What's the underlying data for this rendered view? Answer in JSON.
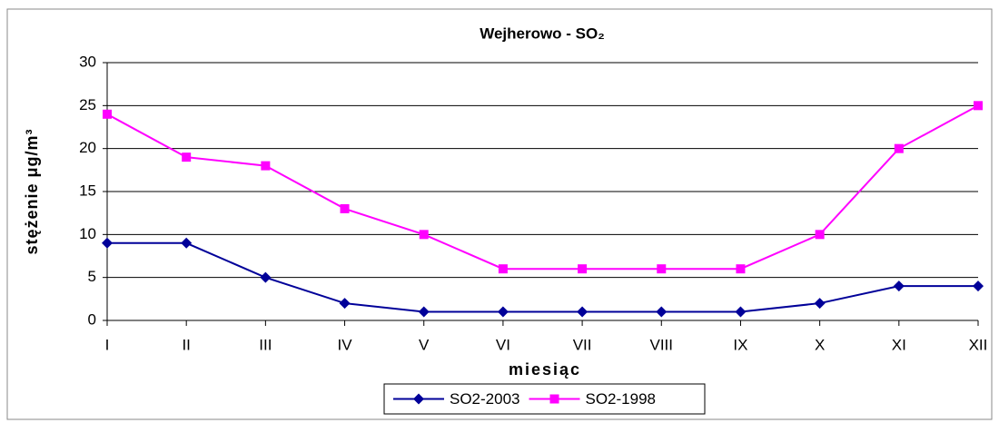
{
  "chart_data": {
    "type": "line",
    "title": "Wejherowo - SO₂",
    "x_label": "miesiąc",
    "y_label": "stężenie μg/m³",
    "categories": [
      "I",
      "II",
      "III",
      "IV",
      "V",
      "VI",
      "VII",
      "VIII",
      "IX",
      "X",
      "XI",
      "XII"
    ],
    "series": [
      {
        "name": "SO2-2003",
        "color": "#000099",
        "marker": "diamond",
        "values": [
          9,
          9,
          5,
          2,
          1,
          1,
          1,
          1,
          1,
          2,
          4,
          4
        ]
      },
      {
        "name": "SO2-1998",
        "color": "#ff00ff",
        "marker": "square",
        "values": [
          24,
          19,
          18,
          13,
          10,
          6,
          6,
          6,
          6,
          10,
          20,
          25
        ]
      }
    ],
    "ylim": [
      0,
      30
    ],
    "yticks": [
      0,
      5,
      10,
      15,
      20,
      25,
      30
    ],
    "grid": true,
    "legend": "bottom"
  }
}
